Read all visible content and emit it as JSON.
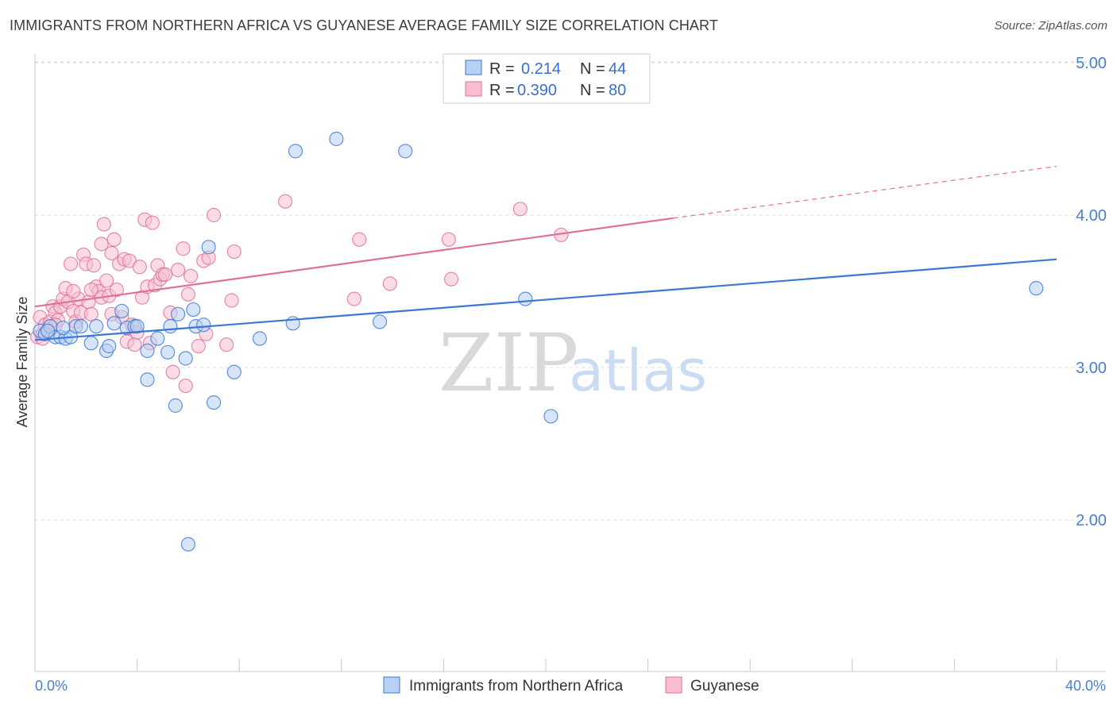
{
  "title": "IMMIGRANTS FROM NORTHERN AFRICA VS GUYANESE AVERAGE FAMILY SIZE CORRELATION CHART",
  "source": "Source: ZipAtlas.com",
  "watermark": {
    "zip": "ZIP",
    "atlas": "atlas"
  },
  "colors": {
    "blue": "#3a78d4",
    "pink": "#e07099",
    "blue_fill": "#b8d0f2",
    "pink_fill": "#f7bfd1",
    "axis_text": "#4a7fd0"
  },
  "legend_box": {
    "rows": [
      {
        "r_label": "R =",
        "r_value": "0.214",
        "n_label": "N =",
        "n_value": "44"
      },
      {
        "r_label": "R =",
        "r_value": "0.390",
        "n_label": "N =",
        "n_value": "80"
      }
    ]
  },
  "chart_data": {
    "type": "scatter",
    "title": "IMMIGRANTS FROM NORTHERN AFRICA VS GUYANESE AVERAGE FAMILY SIZE CORRELATION CHART",
    "xlabel": "",
    "ylabel": "Average Family Size",
    "xlim": [
      0,
      40
    ],
    "ylim": [
      1.0,
      5.2
    ],
    "x_tick_labels": [
      "0.0%",
      "40.0%"
    ],
    "y_ticks": [
      2.0,
      3.0,
      4.0,
      5.0
    ],
    "y_tick_labels": [
      "2.00",
      "3.00",
      "4.00",
      "5.00"
    ],
    "grid": true,
    "legend_position": "top-center",
    "series": [
      {
        "name": "Immigrants from Northern Africa",
        "color": "#3a78d4",
        "trend": {
          "x": [
            0,
            40
          ],
          "y": [
            3.18,
            3.71
          ]
        },
        "points": [
          [
            0.2,
            3.24
          ],
          [
            0.4,
            3.22
          ],
          [
            0.6,
            3.27
          ],
          [
            0.8,
            3.2
          ],
          [
            1.0,
            3.2
          ],
          [
            1.2,
            3.19
          ],
          [
            1.4,
            3.2
          ],
          [
            1.6,
            3.27
          ],
          [
            1.8,
            3.27
          ],
          [
            2.2,
            3.16
          ],
          [
            2.4,
            3.27
          ],
          [
            2.8,
            3.11
          ],
          [
            2.9,
            3.14
          ],
          [
            3.1,
            3.29
          ],
          [
            3.4,
            3.37
          ],
          [
            3.6,
            3.26
          ],
          [
            3.9,
            3.27
          ],
          [
            4.4,
            3.11
          ],
          [
            4.4,
            2.92
          ],
          [
            4.8,
            3.19
          ],
          [
            5.2,
            3.1
          ],
          [
            5.3,
            3.27
          ],
          [
            5.5,
            2.75
          ],
          [
            5.6,
            3.35
          ],
          [
            5.9,
            3.06
          ],
          [
            6.2,
            3.38
          ],
          [
            6.3,
            3.27
          ],
          [
            6.6,
            3.28
          ],
          [
            6.8,
            3.79
          ],
          [
            7.0,
            2.77
          ],
          [
            7.8,
            2.97
          ],
          [
            8.8,
            3.19
          ],
          [
            10.1,
            3.29
          ],
          [
            10.2,
            4.42
          ],
          [
            11.8,
            4.5
          ],
          [
            13.5,
            3.3
          ],
          [
            14.5,
            4.42
          ],
          [
            19.2,
            3.45
          ],
          [
            20.2,
            2.68
          ],
          [
            39.2,
            3.52
          ],
          [
            0.5,
            3.24
          ],
          [
            1.1,
            3.26
          ],
          [
            6.0,
            1.84
          ],
          [
            4.0,
            3.27
          ]
        ]
      },
      {
        "name": "Guyanese",
        "color": "#e07099",
        "trend": {
          "x": [
            0,
            25
          ],
          "y": [
            3.4,
            3.98
          ],
          "dashed": {
            "x": [
              25,
              40
            ],
            "y": [
              3.98,
              4.32
            ]
          }
        },
        "points": [
          [
            0.1,
            3.2
          ],
          [
            0.2,
            3.33
          ],
          [
            0.3,
            3.22
          ],
          [
            0.4,
            3.28
          ],
          [
            0.5,
            3.25
          ],
          [
            0.6,
            3.3
          ],
          [
            0.7,
            3.4
          ],
          [
            0.8,
            3.36
          ],
          [
            0.9,
            3.31
          ],
          [
            1.0,
            3.4
          ],
          [
            1.1,
            3.45
          ],
          [
            1.2,
            3.52
          ],
          [
            1.3,
            3.43
          ],
          [
            1.4,
            3.68
          ],
          [
            1.5,
            3.37
          ],
          [
            1.6,
            3.3
          ],
          [
            1.7,
            3.45
          ],
          [
            1.8,
            3.36
          ],
          [
            1.9,
            3.74
          ],
          [
            2.0,
            3.68
          ],
          [
            2.1,
            3.43
          ],
          [
            2.2,
            3.35
          ],
          [
            2.3,
            3.67
          ],
          [
            2.4,
            3.53
          ],
          [
            2.5,
            3.5
          ],
          [
            2.6,
            3.46
          ],
          [
            2.6,
            3.81
          ],
          [
            2.7,
            3.94
          ],
          [
            2.8,
            3.57
          ],
          [
            2.9,
            3.47
          ],
          [
            3.0,
            3.75
          ],
          [
            3.1,
            3.84
          ],
          [
            3.2,
            3.51
          ],
          [
            3.3,
            3.68
          ],
          [
            3.4,
            3.33
          ],
          [
            3.5,
            3.71
          ],
          [
            3.6,
            3.17
          ],
          [
            3.7,
            3.7
          ],
          [
            3.8,
            3.28
          ],
          [
            3.9,
            3.15
          ],
          [
            4.0,
            3.23
          ],
          [
            4.1,
            3.66
          ],
          [
            4.2,
            3.46
          ],
          [
            4.3,
            3.97
          ],
          [
            4.4,
            3.53
          ],
          [
            4.5,
            3.16
          ],
          [
            4.6,
            3.95
          ],
          [
            4.7,
            3.54
          ],
          [
            4.8,
            3.67
          ],
          [
            4.9,
            3.58
          ],
          [
            5.0,
            3.61
          ],
          [
            5.1,
            3.61
          ],
          [
            5.3,
            3.36
          ],
          [
            5.4,
            2.97
          ],
          [
            5.6,
            3.64
          ],
          [
            5.8,
            3.78
          ],
          [
            5.9,
            2.88
          ],
          [
            6.0,
            3.48
          ],
          [
            6.1,
            3.6
          ],
          [
            6.4,
            3.14
          ],
          [
            6.6,
            3.7
          ],
          [
            6.8,
            3.72
          ],
          [
            7.0,
            4.0
          ],
          [
            7.5,
            3.15
          ],
          [
            7.7,
            3.44
          ],
          [
            7.8,
            3.76
          ],
          [
            9.8,
            4.09
          ],
          [
            12.5,
            3.45
          ],
          [
            12.7,
            3.84
          ],
          [
            13.9,
            3.55
          ],
          [
            16.2,
            3.84
          ],
          [
            16.3,
            3.58
          ],
          [
            19.0,
            4.04
          ],
          [
            20.6,
            3.87
          ],
          [
            0.3,
            3.19
          ],
          [
            6.7,
            3.22
          ],
          [
            1.5,
            3.5
          ],
          [
            3.0,
            3.35
          ],
          [
            2.2,
            3.51
          ],
          [
            0.8,
            3.28
          ]
        ]
      }
    ]
  },
  "bottom_legend": [
    {
      "label": "Immigrants from Northern Africa"
    },
    {
      "label": "Guyanese"
    }
  ]
}
